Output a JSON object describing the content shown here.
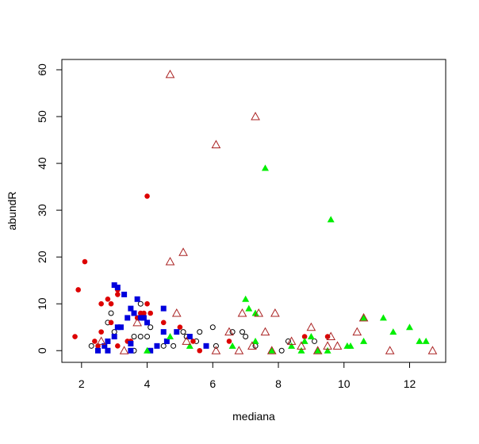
{
  "chart_data": {
    "type": "scatter",
    "x_label": "mediana",
    "y_label": "abundR",
    "xlim": [
      1.4,
      13.1
    ],
    "ylim": [
      -2.5,
      62.2
    ],
    "xticks": [
      2,
      4,
      6,
      8,
      10,
      12
    ],
    "yticks": [
      0,
      10,
      20,
      30,
      40,
      50,
      60
    ],
    "series": [
      {
        "color": "#000000",
        "marker": "open-circle",
        "x": [
          2.3,
          2.8,
          2.9,
          3.0,
          3.6,
          3.8,
          3.8,
          4.0,
          4.1,
          4.8,
          5.1,
          5.2,
          5.5,
          5.6,
          6.0,
          6.1,
          6.6,
          6.9,
          7.0,
          7.3,
          8.1,
          8.3,
          9.1,
          3.6,
          4.5
        ],
        "values": [
          1,
          6,
          8,
          4,
          3,
          10,
          3,
          3,
          5,
          1,
          4,
          3,
          2,
          4,
          5,
          1,
          4,
          4,
          3,
          1,
          0,
          2,
          2,
          0,
          1
        ]
      },
      {
        "color": "#dd0000",
        "marker": "filled-circle",
        "x": [
          1.8,
          1.9,
          2.1,
          2.4,
          2.5,
          2.6,
          2.6,
          2.8,
          2.9,
          2.9,
          3.1,
          3.1,
          3.1,
          3.4,
          3.5,
          3.7,
          3.8,
          3.9,
          4.0,
          4.0,
          4.1,
          4.5,
          4.5,
          5.0,
          5.4,
          5.6,
          6.5,
          8.8,
          9.5
        ],
        "values": [
          3,
          13,
          19,
          2,
          1,
          10,
          4,
          11,
          10,
          6,
          13,
          12,
          1,
          2,
          2,
          7,
          8,
          8,
          10,
          33,
          8,
          6,
          4,
          5,
          2,
          0,
          2,
          3,
          3
        ]
      },
      {
        "color": "#0000dd",
        "marker": "filled-square",
        "x": [
          2.5,
          2.7,
          2.8,
          2.8,
          3.0,
          3.1,
          3.0,
          3.1,
          3.2,
          3.3,
          3.4,
          3.5,
          3.5,
          3.6,
          3.7,
          3.8,
          3.9,
          4.0,
          4.1,
          4.3,
          4.5,
          4.5,
          4.6,
          4.9,
          5.3,
          5.8,
          3.5
        ],
        "values": [
          0,
          1,
          2,
          0,
          14,
          13.5,
          3,
          5,
          5,
          12,
          7,
          9,
          0,
          8,
          11,
          7,
          7,
          6,
          0,
          1,
          9,
          4,
          2,
          4,
          3,
          1,
          1.5
        ]
      },
      {
        "color": "#00ee00",
        "marker": "filled-triangle",
        "x": [
          4.7,
          5.3,
          6.6,
          7.0,
          7.1,
          7.3,
          7.3,
          7.6,
          7.8,
          8.4,
          8.7,
          8.8,
          9.0,
          9.2,
          9.6,
          9.5,
          10.1,
          10.2,
          10.6,
          10.6,
          11.2,
          11.5,
          12.0,
          12.3,
          12.5,
          4.0
        ],
        "values": [
          3,
          1,
          1,
          11,
          9,
          2,
          8,
          39,
          0,
          1,
          0,
          2,
          3,
          0,
          28,
          0,
          1,
          1,
          7,
          2,
          7,
          4,
          5,
          2,
          2,
          0
        ]
      },
      {
        "color": "#aa2222",
        "marker": "open-triangle",
        "x": [
          4.7,
          7.3,
          6.1,
          5.1,
          4.7,
          4.9,
          5.2,
          6.1,
          6.5,
          6.9,
          6.8,
          7.2,
          7.4,
          7.6,
          7.9,
          7.8,
          8.4,
          8.7,
          9.0,
          9.2,
          9.5,
          9.6,
          9.8,
          10.4,
          10.6,
          11.4,
          12.7,
          2.6,
          3.3,
          3.7
        ],
        "values": [
          59,
          50,
          44,
          21,
          19,
          8,
          2,
          0,
          4,
          8,
          0,
          1,
          8,
          4,
          8,
          0,
          2,
          1,
          5,
          0,
          1,
          3,
          1,
          4,
          7,
          0,
          0,
          2,
          0,
          6
        ]
      }
    ]
  }
}
